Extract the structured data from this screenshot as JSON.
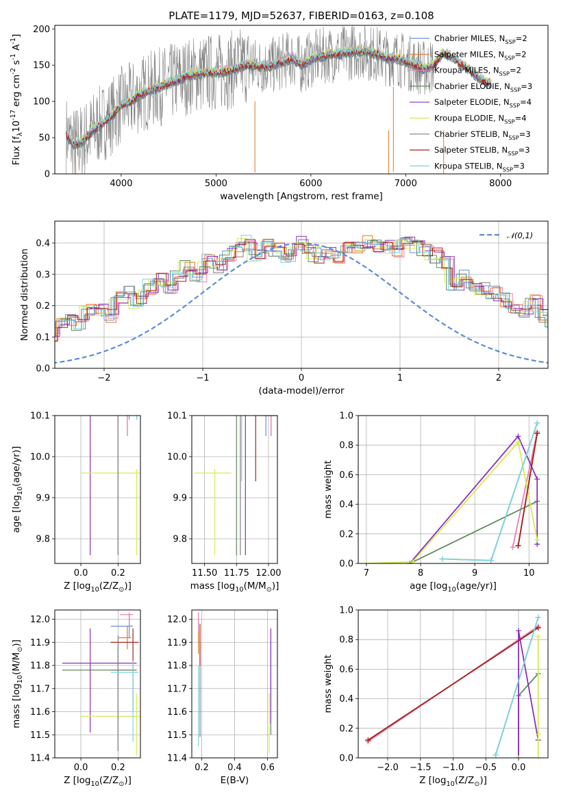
{
  "colors": {
    "Chabrier MILES": "#6a8fd8",
    "Salpeter MILES": "#e8761f",
    "Kroupa MILES": "#e37fb1",
    "Chabrier ELODIE": "#5f8a5a",
    "Salpeter ELODIE": "#8b2dbb",
    "Kroupa ELODIE": "#d5ea53",
    "Chabrier STELIB": "#7f7f7f",
    "Salpeter STELIB": "#a6221a",
    "Kroupa STELIB": "#7dd5dd",
    "gaussian": "#5b8bd6"
  },
  "legend_spectrum": [
    "Chabrier MILES, N$_{SSP}$=2",
    "Salpeter MILES, N$_{SSP}$=2",
    "Kroupa MILES, N$_{SSP}$=2",
    "Chabrier ELODIE, N$_{SSP}$=3",
    "Salpeter ELODIE, N$_{SSP}$=4",
    "Kroupa ELODIE, N$_{SSP}$=4",
    "Chabrier STELIB, N$_{SSP}$=3",
    "Salpeter STELIB, N$_{SSP}$=3",
    "Kroupa STELIB, N$_{SSP}$=3"
  ],
  "chart_data": [
    {
      "id": "spectrum",
      "type": "line",
      "title": "PLATE=1179, MJD=52637, FIBERID=0163, z=0.108",
      "xlabel": "wavelength [Angstrom, rest frame]",
      "ylabel": "Flux [f$_\\lambda$10$^{-17}$ erg cm$^{-2}$ s$^{-1}$ A$^{-1}$]",
      "xlim": [
        3300,
        8500
      ],
      "ylim": [
        0,
        205
      ],
      "xticks": [
        4000,
        5000,
        6000,
        7000,
        8000
      ],
      "yticks": [
        0,
        50,
        100,
        150,
        200
      ],
      "model_x": [
        3420,
        3500,
        3600,
        3700,
        3800,
        3900,
        4000,
        4100,
        4200,
        4300,
        4400,
        4500,
        4600,
        4700,
        4800,
        4900,
        5000,
        5100,
        5200,
        5300,
        5400,
        5500,
        5600,
        5700,
        5800,
        5900,
        6000,
        6100,
        6200,
        6300,
        6400,
        6500,
        6600,
        6700,
        6800,
        6900,
        7000,
        7100,
        7200,
        7300,
        7400,
        7500,
        7600,
        7700,
        7800,
        7900
      ],
      "model_y": [
        55,
        40,
        45,
        60,
        70,
        80,
        95,
        100,
        110,
        115,
        120,
        125,
        130,
        135,
        138,
        140,
        140,
        142,
        145,
        150,
        150,
        148,
        150,
        155,
        160,
        150,
        158,
        162,
        165,
        165,
        168,
        170,
        168,
        165,
        160,
        160,
        155,
        150,
        145,
        150,
        168,
        160,
        150,
        140,
        130,
        125
      ]
    },
    {
      "id": "residuals",
      "type": "line",
      "xlabel": "(data-model)/error",
      "ylabel": "Normed distribution",
      "xlim": [
        -2.5,
        2.5
      ],
      "ylim": [
        0,
        0.47
      ],
      "xticks": [
        -2,
        -1,
        0,
        1,
        2
      ],
      "yticks": [
        0.0,
        0.1,
        0.2,
        0.3,
        0.4
      ],
      "legend": "$\\mathcal{N}(0,1)$",
      "hist_bin_width": 0.1,
      "hist_base": [
        0.02,
        0.02,
        0.03,
        0.04,
        0.05,
        0.06,
        0.08,
        0.07,
        0.06,
        0.09,
        0.08,
        0.11,
        0.1,
        0.12,
        0.11,
        0.14,
        0.16,
        0.14,
        0.18,
        0.19,
        0.17,
        0.22,
        0.24,
        0.21,
        0.26,
        0.28,
        0.26,
        0.3,
        0.32,
        0.3,
        0.34,
        0.33,
        0.36,
        0.38,
        0.4,
        0.36,
        0.39,
        0.38,
        0.36,
        0.4,
        0.39,
        0.36,
        0.37,
        0.36,
        0.38,
        0.38,
        0.4,
        0.39,
        0.4,
        0.38,
        0.4,
        0.39,
        0.38,
        0.36,
        0.34,
        0.27,
        0.29,
        0.26,
        0.25,
        0.24,
        0.22,
        0.2,
        0.18,
        0.21,
        0.17,
        0.15,
        0.13,
        0.15,
        0.12,
        0.1,
        0.09,
        0.08,
        0.09,
        0.07,
        0.06,
        0.05,
        0.06,
        0.05,
        0.04,
        0.04
      ]
    },
    {
      "id": "z-age",
      "type": "scatter",
      "xlabel": "Z [log$_{10}$(Z/Z$_\\odot$)]",
      "ylabel": "age  [log$_{10}$(age/yr)]",
      "xlim": [
        -0.14,
        0.32
      ],
      "ylim": [
        9.74,
        10.1
      ],
      "xticks": [
        0.0,
        0.2
      ],
      "yticks": [
        9.8,
        9.9,
        10.0,
        10.1
      ],
      "points": [
        {
          "m": "Chabrier MILES",
          "x": 0.26,
          "y": 10.14,
          "xe": [
            0.05,
            0.04
          ],
          "ye": [
            0.05,
            0.01
          ]
        },
        {
          "m": "Salpeter MILES",
          "x": 0.25,
          "y": 10.1,
          "xe": [
            0.01,
            0.01
          ],
          "ye": [
            0.05,
            0.01
          ]
        },
        {
          "m": "Kroupa MILES",
          "x": 0.25,
          "y": 10.1,
          "xe": [
            0.01,
            0.01
          ],
          "ye": [
            0.05,
            0.01
          ]
        },
        {
          "m": "Chabrier ELODIE",
          "x": 0.2,
          "y": 10.14,
          "xe": [
            0.3,
            0.1
          ],
          "ye": [
            0.38,
            0.03
          ]
        },
        {
          "m": "Salpeter ELODIE",
          "x": 0.05,
          "y": 10.14,
          "xe": [
            0.15,
            0.25
          ],
          "ye": [
            0.38,
            0.04
          ]
        },
        {
          "m": "Kroupa ELODIE",
          "x": 0.3,
          "y": 9.96,
          "xe": [
            0.3,
            0.05
          ],
          "ye": [
            0.2,
            0.01
          ]
        },
        {
          "m": "Chabrier STELIB",
          "x": 0.2,
          "y": 10.14,
          "xe": [
            0.05,
            0.1
          ],
          "ye": [
            0.38,
            0.03
          ]
        },
        {
          "m": "Salpeter STELIB",
          "x": 0.3,
          "y": 10.14,
          "xe": [
            0.1,
            0.01
          ],
          "ye": [
            0.05,
            0.01
          ]
        },
        {
          "m": "Kroupa STELIB",
          "x": 0.3,
          "y": 10.14,
          "xe": [
            0.05,
            0.01
          ],
          "ye": [
            0.05,
            0.01
          ]
        }
      ]
    },
    {
      "id": "mass-age",
      "type": "scatter",
      "xlabel": "mass [log$_{10}$(M/M$_\\odot$)]",
      "ylabel": "",
      "xlim": [
        11.4,
        12.07
      ],
      "ylim": [
        9.74,
        10.1
      ],
      "xticks": [
        11.5,
        11.75,
        12.0
      ],
      "yticks": [
        9.8,
        9.9,
        10.0,
        10.1
      ],
      "points": [
        {
          "m": "Chabrier MILES",
          "x": 11.98,
          "y": 10.1,
          "xe": [
            0.06,
            0.06
          ],
          "ye": [
            0.05,
            0.01
          ]
        },
        {
          "m": "Salpeter MILES",
          "x": 12.02,
          "y": 10.1,
          "xe": [
            0.06,
            0.06
          ],
          "ye": [
            0.05,
            0.01
          ]
        },
        {
          "m": "Kroupa MILES",
          "x": 12.02,
          "y": 10.1,
          "xe": [
            0.06,
            0.06
          ],
          "ye": [
            0.05,
            0.01
          ]
        },
        {
          "m": "Chabrier ELODIE",
          "x": 11.75,
          "y": 10.14,
          "xe": [
            0.3,
            0.08
          ],
          "ye": [
            0.38,
            0.03
          ]
        },
        {
          "m": "Salpeter ELODIE",
          "x": 11.82,
          "y": 10.14,
          "xe": [
            0.3,
            0.1
          ],
          "ye": [
            0.38,
            0.03
          ]
        },
        {
          "m": "Kroupa ELODIE",
          "x": 11.58,
          "y": 9.96,
          "xe": [
            0.16,
            0.13
          ],
          "ye": [
            0.2,
            0.01
          ]
        },
        {
          "m": "Chabrier STELIB",
          "x": 11.78,
          "y": 10.14,
          "xe": [
            0.15,
            0.08
          ],
          "ye": [
            0.38,
            0.03
          ]
        },
        {
          "m": "Salpeter STELIB",
          "x": 11.9,
          "y": 10.14,
          "xe": [
            0.1,
            0.05
          ],
          "ye": [
            0.2,
            0.02
          ]
        },
        {
          "m": "Kroupa STELIB",
          "x": 11.79,
          "y": 10.14,
          "xe": [
            0.05,
            0.05
          ],
          "ye": [
            0.2,
            0.02
          ]
        }
      ]
    },
    {
      "id": "age-weight",
      "type": "line",
      "xlabel": "age  [log$_{10}$(age/yr)]",
      "ylabel": "mass weight",
      "xlim": [
        6.85,
        10.35
      ],
      "ylim": [
        0,
        1.0
      ],
      "xticks": [
        7,
        8,
        9,
        10
      ],
      "yticks": [
        0.0,
        0.2,
        0.4,
        0.6,
        0.8,
        1.0
      ],
      "series": [
        {
          "m": "Chabrier MILES",
          "x": [
            9.8,
            10.15
          ],
          "y": [
            0.12,
            0.88
          ]
        },
        {
          "m": "Salpeter MILES",
          "x": [
            9.8,
            10.15
          ],
          "y": [
            0.12,
            0.88
          ]
        },
        {
          "m": "Kroupa MILES",
          "x": [
            9.7,
            10.15
          ],
          "y": [
            0.11,
            0.89
          ]
        },
        {
          "m": "Chabrier ELODIE",
          "x": [
            7.8,
            10.15
          ],
          "y": [
            0.0,
            0.42
          ]
        },
        {
          "m": "Salpeter ELODIE",
          "x": [
            7.8,
            9.8,
            10.15,
            10.15
          ],
          "y": [
            0.0,
            0.86,
            0.57,
            0.13
          ]
        },
        {
          "m": "Kroupa ELODIE",
          "x": [
            7.0,
            7.85,
            9.8,
            10.15
          ],
          "y": [
            0.0,
            0.01,
            0.82,
            0.16
          ]
        },
        {
          "m": "Chabrier STELIB",
          "x": [
            8.4,
            9.3,
            10.15
          ],
          "y": [
            0.03,
            0.02,
            0.95
          ]
        },
        {
          "m": "Salpeter STELIB",
          "x": [
            9.8,
            10.15
          ],
          "y": [
            0.12,
            0.88
          ]
        },
        {
          "m": "Kroupa STELIB",
          "x": [
            8.4,
            9.3,
            10.15
          ],
          "y": [
            0.03,
            0.02,
            0.95
          ]
        }
      ]
    },
    {
      "id": "z-mass",
      "type": "scatter",
      "xlabel": "Z [log$_{10}$(Z/Z$_\\odot$)]",
      "ylabel": "mass [log$_{10}$(M/M$_\\odot$)]",
      "xlim": [
        -0.14,
        0.32
      ],
      "ylim": [
        11.4,
        12.04
      ],
      "xticks": [
        0.0,
        0.2
      ],
      "yticks": [
        11.4,
        11.5,
        11.6,
        11.7,
        11.8,
        11.9,
        12.0
      ],
      "points": [
        {
          "m": "Chabrier MILES",
          "x": 0.26,
          "y": 11.97,
          "xe": [
            0.1,
            0.02
          ],
          "ye": [
            0.05,
            0.05
          ]
        },
        {
          "m": "Salpeter MILES",
          "x": 0.25,
          "y": 11.92,
          "xe": [
            0.05,
            0.02
          ],
          "ye": [
            0.05,
            0.05
          ]
        },
        {
          "m": "Kroupa MILES",
          "x": 0.26,
          "y": 12.02,
          "xe": [
            0.05,
            0.02
          ],
          "ye": [
            0.05,
            0.01
          ]
        },
        {
          "m": "Chabrier ELODIE",
          "x": 0.2,
          "y": 11.78,
          "xe": [
            0.3,
            0.1
          ],
          "ye": [
            0.35,
            0.1
          ]
        },
        {
          "m": "Salpeter ELODIE",
          "x": 0.05,
          "y": 11.81,
          "xe": [
            0.15,
            0.25
          ],
          "ye": [
            0.3,
            0.15
          ]
        },
        {
          "m": "Kroupa ELODIE",
          "x": 0.3,
          "y": 11.58,
          "xe": [
            0.3,
            0.03
          ],
          "ye": [
            0.17,
            0.1
          ]
        },
        {
          "m": "Chabrier STELIB",
          "x": 0.2,
          "y": 11.78,
          "xe": [
            0.05,
            0.1
          ],
          "ye": [
            0.35,
            0.15
          ]
        },
        {
          "m": "Salpeter STELIB",
          "x": 0.28,
          "y": 11.9,
          "xe": [
            0.12,
            0.03
          ],
          "ye": [
            0.3,
            0.06
          ]
        },
        {
          "m": "Kroupa STELIB",
          "x": 0.28,
          "y": 11.77,
          "xe": [
            0.12,
            0.03
          ],
          "ye": [
            0.3,
            0.05
          ]
        }
      ]
    },
    {
      "id": "ebv-mass",
      "type": "scatter",
      "xlabel": "E(B-V)",
      "ylabel": "",
      "xlim": [
        0.14,
        0.66
      ],
      "ylim": [
        11.4,
        12.04
      ],
      "xticks": [
        0.2,
        0.4,
        0.6
      ],
      "yticks": [
        11.4,
        11.5,
        11.6,
        11.7,
        11.8,
        11.9,
        12.0
      ],
      "points": [
        {
          "m": "Chabrier MILES",
          "x": 0.18,
          "y": 11.95,
          "ye": [
            0.05,
            0.05
          ]
        },
        {
          "m": "Salpeter MILES",
          "x": 0.18,
          "y": 11.9,
          "ye": [
            0.05,
            0.05
          ]
        },
        {
          "m": "Kroupa MILES",
          "x": 0.18,
          "y": 12.0,
          "ye": [
            0.05,
            0.03
          ]
        },
        {
          "m": "Chabrier ELODIE",
          "x": 0.62,
          "y": 11.8,
          "ye": [
            0.3,
            0.1
          ]
        },
        {
          "m": "Salpeter ELODIE",
          "x": 0.62,
          "y": 11.8,
          "ye": [
            0.25,
            0.16
          ]
        },
        {
          "m": "Kroupa ELODIE",
          "x": 0.61,
          "y": 11.58,
          "ye": [
            0.16,
            0.1
          ]
        },
        {
          "m": "Chabrier STELIB",
          "x": 0.19,
          "y": 11.75,
          "ye": [
            0.26,
            0.15
          ]
        },
        {
          "m": "Salpeter STELIB",
          "x": 0.19,
          "y": 11.9,
          "ye": [
            0.1,
            0.08
          ]
        },
        {
          "m": "Kroupa STELIB",
          "x": 0.18,
          "y": 11.7,
          "ye": [
            0.25,
            0.1
          ]
        }
      ]
    },
    {
      "id": "z-weight",
      "type": "line",
      "xlabel": "Z [log$_{10}$(Z/Z$_\\odot$)]",
      "ylabel": "mass weight",
      "xlim": [
        -2.45,
        0.45
      ],
      "ylim": [
        0,
        1.0
      ],
      "xticks": [
        -2.0,
        -1.5,
        -1.0,
        -0.5,
        0.0
      ],
      "yticks": [
        0.0,
        0.2,
        0.4,
        0.6,
        0.8,
        1.0
      ],
      "series": [
        {
          "m": "Chabrier MILES",
          "x": [
            -2.3,
            0.3
          ],
          "y": [
            0.12,
            0.88
          ]
        },
        {
          "m": "Salpeter MILES",
          "x": [
            -2.3,
            0.3
          ],
          "y": [
            0.12,
            0.88
          ]
        },
        {
          "m": "Kroupa MILES",
          "x": [
            -2.3,
            0.3
          ],
          "y": [
            0.11,
            0.89
          ]
        },
        {
          "m": "Chabrier ELODIE",
          "x": [
            0.0,
            0.0,
            0.3
          ],
          "y": [
            0.0,
            0.42,
            0.57
          ]
        },
        {
          "m": "Salpeter ELODIE",
          "x": [
            0.0,
            0.0,
            0.3
          ],
          "y": [
            0.0,
            0.86,
            0.12
          ]
        },
        {
          "m": "Kroupa ELODIE",
          "x": [
            0.0,
            0.3,
            0.3,
            0.3
          ],
          "y": [
            0.0,
            0.0,
            0.82,
            0.16
          ]
        },
        {
          "m": "Chabrier STELIB",
          "x": [
            -0.35,
            -0.35,
            0.3
          ],
          "y": [
            0.02,
            0.02,
            0.95
          ]
        },
        {
          "m": "Salpeter STELIB",
          "x": [
            -2.3,
            0.3
          ],
          "y": [
            0.12,
            0.88
          ]
        },
        {
          "m": "Kroupa STELIB",
          "x": [
            -0.35,
            -0.35,
            0.3
          ],
          "y": [
            0.02,
            0.02,
            0.95
          ]
        }
      ]
    }
  ]
}
